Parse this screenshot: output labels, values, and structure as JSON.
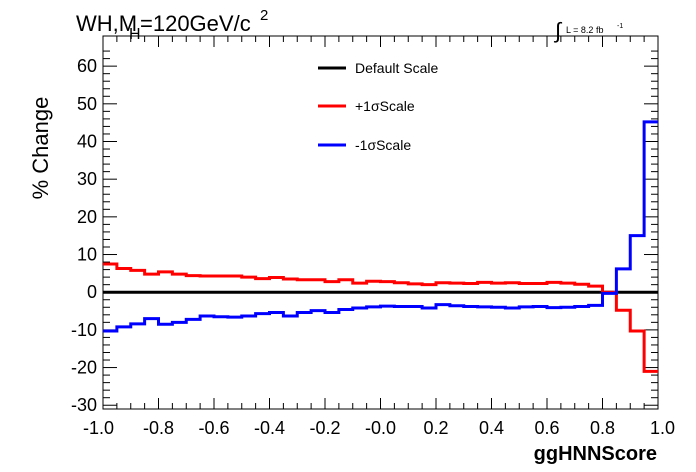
{
  "chart_data": {
    "type": "line",
    "title_main": "WH,M",
    "title_sub": "H",
    "title_rest": "=120GeV/c",
    "title_sup": "2",
    "lumi_text": "L = 8.2 fb",
    "lumi_sup": "-1",
    "lumi_integral": "∫",
    "xlabel": "ggHNNScore",
    "ylabel": "% Change",
    "xlim": [
      -1.0,
      1.0
    ],
    "ylim": [
      -31,
      68
    ],
    "x_ticks": [
      -1.0,
      -0.8,
      -0.6,
      -0.4,
      -0.2,
      0.0,
      0.2,
      0.4,
      0.6,
      0.8,
      1.0
    ],
    "x_tick_labels": [
      "-1.0",
      "-0.8",
      "-0.6",
      "-0.4",
      "-0.2",
      "-0.0",
      "0.2",
      "0.4",
      "0.6",
      "0.8",
      "1.0"
    ],
    "y_ticks": [
      -30,
      -20,
      -10,
      0,
      10,
      20,
      30,
      40,
      50,
      60
    ],
    "y_tick_labels": [
      "-30",
      "-20",
      "-10",
      "0",
      "10",
      "20",
      "30",
      "40",
      "50",
      "60"
    ],
    "bin_edges": [
      -1.0,
      -0.95,
      -0.9,
      -0.85,
      -0.8,
      -0.75,
      -0.7,
      -0.65,
      -0.6,
      -0.55,
      -0.5,
      -0.45,
      -0.4,
      -0.35,
      -0.3,
      -0.25,
      -0.2,
      -0.15,
      -0.1,
      -0.05,
      0.0,
      0.05,
      0.1,
      0.15,
      0.2,
      0.25,
      0.3,
      0.35,
      0.4,
      0.45,
      0.5,
      0.55,
      0.6,
      0.65,
      0.7,
      0.75,
      0.8,
      0.85,
      0.9,
      0.95,
      1.0
    ],
    "series": [
      {
        "name": "Default Scale",
        "color": "#000000",
        "values": [
          0,
          0,
          0,
          0,
          0,
          0,
          0,
          0,
          0,
          0,
          0,
          0,
          0,
          0,
          0,
          0,
          0,
          0,
          0,
          0,
          0,
          0,
          0,
          0,
          0,
          0,
          0,
          0,
          0,
          0,
          0,
          0,
          0,
          0,
          0,
          0,
          0,
          0,
          0,
          0
        ]
      },
      {
        "name": "+1σScale",
        "color": "#ff0000",
        "values": [
          7.5,
          6.3,
          5.8,
          4.8,
          5.4,
          4.8,
          4.4,
          4.3,
          4.3,
          4.3,
          4.0,
          3.6,
          3.9,
          3.5,
          3.3,
          3.3,
          2.8,
          3.3,
          2.4,
          2.9,
          2.8,
          2.5,
          2.2,
          2.0,
          2.5,
          2.4,
          2.3,
          2.6,
          2.4,
          2.5,
          2.3,
          2.3,
          2.6,
          2.4,
          2.1,
          1.6,
          0.0,
          -4.8,
          -10.3,
          -21.0
        ]
      },
      {
        "name": "-1σScale",
        "color": "#0000ff",
        "values": [
          -10.3,
          -9.2,
          -8.4,
          -7.0,
          -8.5,
          -8.0,
          -7.2,
          -6.3,
          -6.5,
          -6.6,
          -6.3,
          -5.7,
          -5.4,
          -6.3,
          -5.4,
          -4.9,
          -5.4,
          -4.6,
          -4.2,
          -3.9,
          -3.7,
          -3.8,
          -3.8,
          -4.2,
          -3.3,
          -3.6,
          -3.8,
          -3.9,
          -4.0,
          -4.2,
          -3.9,
          -3.8,
          -4.1,
          -4.0,
          -3.8,
          -3.5,
          -0.3,
          6.2,
          15.0,
          45.2
        ]
      }
    ],
    "legend_position": "top-center",
    "grid": false
  }
}
